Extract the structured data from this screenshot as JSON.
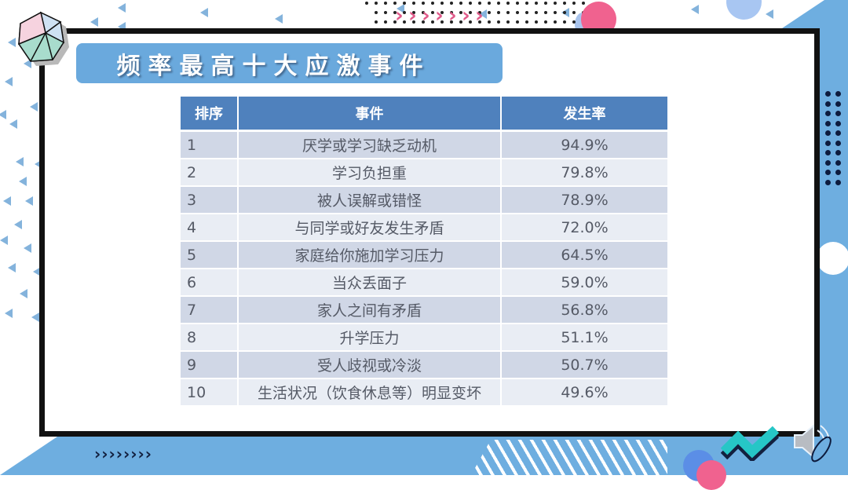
{
  "slide": {
    "title": "频率最高十大应激事件",
    "colors": {
      "title_bar": "#6aa9dd",
      "table_header": "#4f81bd",
      "row_odd": "#d0d7e6",
      "row_even": "#e9edf4",
      "frame": "#111111",
      "accent_pink": "#f05a8c",
      "accent_blue": "#6eaee0",
      "accent_teal": "#26c6c6"
    }
  },
  "table": {
    "headers": {
      "rank": "排序",
      "event": "事件",
      "rate": "发生率"
    },
    "rows": [
      {
        "rank": "1",
        "event": "厌学或学习缺乏动机",
        "rate": "94.9%"
      },
      {
        "rank": "2",
        "event": "学习负担重",
        "rate": "79.8%"
      },
      {
        "rank": "3",
        "event": "被人误解或错怪",
        "rate": "78.9%"
      },
      {
        "rank": "4",
        "event": "与同学或好友发生矛盾",
        "rate": "72.0%"
      },
      {
        "rank": "5",
        "event": "家庭给你施加学习压力",
        "rate": "64.5%"
      },
      {
        "rank": "6",
        "event": "当众丢面子",
        "rate": "59.0%"
      },
      {
        "rank": "7",
        "event": "家人之间有矛盾",
        "rate": "56.8%"
      },
      {
        "rank": "8",
        "event": "升学压力",
        "rate": "51.1%"
      },
      {
        "rank": "9",
        "event": "受人歧视或冷淡",
        "rate": "50.7%"
      },
      {
        "rank": "10",
        "event": "生活状况（饮食休息等）明显变坏",
        "rate": "49.6%"
      }
    ]
  },
  "decorations": {
    "bottom_chevrons": "››››››››",
    "top_chevrons": "›››››››",
    "icons": [
      "icosahedron-icon",
      "zigzag-icon",
      "speaker-icon"
    ]
  }
}
